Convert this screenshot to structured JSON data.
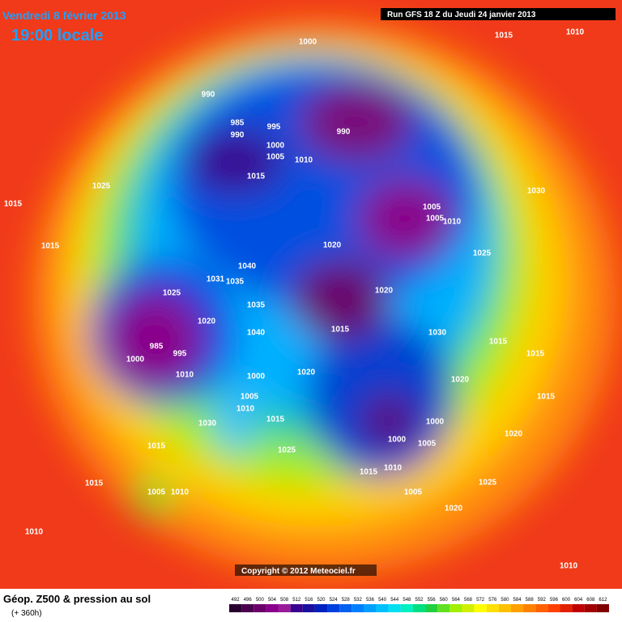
{
  "header": {
    "date": "Vendredi 8 février 2013",
    "time": "19:00 locale",
    "run": "Run GFS 18 Z du Jeudi 24 janvier 2013"
  },
  "isobar_labels": [
    "1000",
    "1015",
    "1010",
    "990",
    "985",
    "995",
    "990",
    "990",
    "1000",
    "1005",
    "1010",
    "1015",
    "1025",
    "1015",
    "1030",
    "1005",
    "1005",
    "1010",
    "1015",
    "1020",
    "1025",
    "1040",
    "1035",
    "1031",
    "1025",
    "1020",
    "1035",
    "1020",
    "1015",
    "1030",
    "1040",
    "1015",
    "985",
    "995",
    "1015",
    "1000",
    "1010",
    "1000",
    "1020",
    "1020",
    "1005",
    "1015",
    "1010",
    "1015",
    "1030",
    "1000",
    "1005",
    "1000",
    "1020",
    "1015",
    "1025",
    "1015",
    "1010",
    "1015",
    "1005",
    "1010",
    "1005",
    "1025",
    "1020",
    "1010",
    "1010"
  ],
  "copyright": "Copyright © 2012 Meteociel.fr",
  "footer": {
    "title": "Géop. Z500 & pression au sol",
    "subtitle": "(+ 360h)"
  },
  "legend": {
    "labels": [
      "492",
      "496",
      "500",
      "504",
      "508",
      "512",
      "516",
      "520",
      "524",
      "528",
      "532",
      "536",
      "540",
      "544",
      "548",
      "552",
      "556",
      "560",
      "564",
      "568",
      "572",
      "576",
      "580",
      "584",
      "588",
      "592",
      "596",
      "600",
      "604",
      "608",
      "612"
    ],
    "colors": [
      "#2a0030",
      "#4b0050",
      "#6a006a",
      "#8a008a",
      "#9a1a9a",
      "#3a0090",
      "#1a10a0",
      "#0020c0",
      "#0040e0",
      "#0060f0",
      "#0080ff",
      "#00a0ff",
      "#00c0ff",
      "#00e0f0",
      "#00f0c0",
      "#00e080",
      "#20d040",
      "#60e020",
      "#a0f000",
      "#d0f000",
      "#ffff00",
      "#ffe000",
      "#ffc000",
      "#ffa000",
      "#ff8000",
      "#ff6000",
      "#ff4000",
      "#e02000",
      "#c00000",
      "#a00000",
      "#800000"
    ]
  }
}
